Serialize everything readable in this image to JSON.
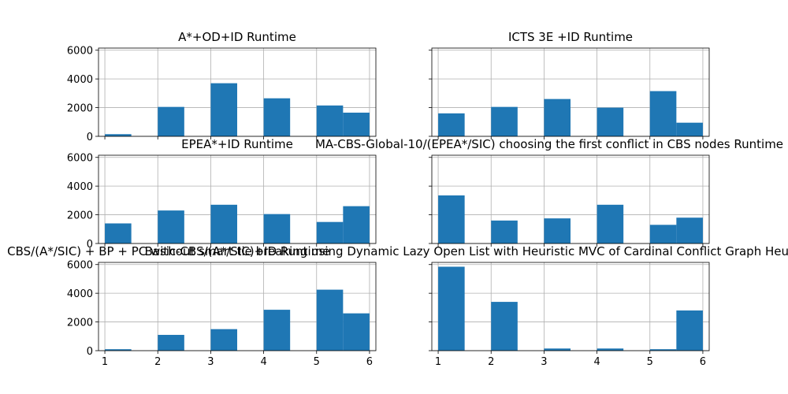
{
  "colors": {
    "bar": "#1f77b4",
    "grid": "#b0b0b0",
    "axis": "#000000",
    "background": "#ffffff"
  },
  "chart_data": [
    {
      "type": "bar",
      "title": "A*+OD+ID Runtime",
      "bins": [
        [
          1.0,
          1.5
        ],
        [
          2.0,
          2.5
        ],
        [
          3.0,
          3.5
        ],
        [
          4.0,
          4.5
        ],
        [
          5.0,
          5.5
        ],
        [
          5.5,
          6.0
        ]
      ],
      "values": [
        150,
        2050,
        3700,
        2650,
        2150,
        1650
      ],
      "xlim": [
        0.88,
        6.12
      ],
      "ylim": [
        0,
        6150
      ],
      "xticks": [],
      "yticks": [
        "0",
        "2000",
        "4000",
        "6000"
      ],
      "grid": true
    },
    {
      "type": "bar",
      "title": "ICTS 3E +ID Runtime",
      "bins": [
        [
          1.0,
          1.5
        ],
        [
          2.0,
          2.5
        ],
        [
          3.0,
          3.5
        ],
        [
          4.0,
          4.5
        ],
        [
          5.0,
          5.5
        ],
        [
          5.5,
          6.0
        ]
      ],
      "values": [
        1600,
        2050,
        2600,
        2000,
        3150,
        950
      ],
      "xlim": [
        0.88,
        6.12
      ],
      "ylim": [
        0,
        6150
      ],
      "xticks": [],
      "yticks": [],
      "grid": true
    },
    {
      "type": "bar",
      "title": "EPEA*+ID Runtime",
      "bins": [
        [
          1.0,
          1.5
        ],
        [
          2.0,
          2.5
        ],
        [
          3.0,
          3.5
        ],
        [
          4.0,
          4.5
        ],
        [
          5.0,
          5.5
        ],
        [
          5.5,
          6.0
        ]
      ],
      "values": [
        1400,
        2300,
        2700,
        2050,
        1500,
        2600
      ],
      "xlim": [
        0.88,
        6.12
      ],
      "ylim": [
        0,
        6150
      ],
      "xticks": [],
      "yticks": [
        "0",
        "2000",
        "4000",
        "6000"
      ],
      "grid": true
    },
    {
      "type": "bar",
      "title": "MA-CBS-Global-10/(EPEA*/SIC) choosing the first conflict in CBS nodes Runtime",
      "bins": [
        [
          1.0,
          1.5
        ],
        [
          2.0,
          2.5
        ],
        [
          3.0,
          3.5
        ],
        [
          4.0,
          4.5
        ],
        [
          5.0,
          5.5
        ],
        [
          5.5,
          6.0
        ]
      ],
      "values": [
        3350,
        1600,
        1750,
        2700,
        1300,
        1800
      ],
      "xlim": [
        0.88,
        6.12
      ],
      "ylim": [
        0,
        6150
      ],
      "xticks": [],
      "yticks": [],
      "grid": true
    },
    {
      "type": "bar",
      "title": "Basic-CBS/(A*/SIC)+ID Runtime",
      "bins": [
        [
          1.0,
          1.5
        ],
        [
          2.0,
          2.5
        ],
        [
          3.0,
          3.5
        ],
        [
          4.0,
          4.5
        ],
        [
          5.0,
          5.5
        ],
        [
          5.5,
          6.0
        ]
      ],
      "values": [
        100,
        1100,
        1500,
        2850,
        4250,
        2600
      ],
      "xlim": [
        0.88,
        6.12
      ],
      "ylim": [
        0,
        6150
      ],
      "xticks": [
        "1",
        "2",
        "3",
        "4",
        "5",
        "6"
      ],
      "yticks": [
        "0",
        "2000",
        "4000",
        "6000"
      ],
      "grid": true
    },
    {
      "type": "bar",
      "title": "CBS/(A*/SIC) + BP + PC without smart tie breaking using Dynamic Lazy Open List with Heuristic MVC of Cardinal Conflict Graph Heuristic Runtime",
      "bins": [
        [
          1.0,
          1.5
        ],
        [
          2.0,
          2.5
        ],
        [
          3.0,
          3.5
        ],
        [
          4.0,
          4.5
        ],
        [
          5.0,
          5.5
        ],
        [
          5.5,
          6.0
        ]
      ],
      "values": [
        5850,
        3400,
        150,
        150,
        100,
        2800
      ],
      "xlim": [
        0.88,
        6.12
      ],
      "ylim": [
        0,
        6150
      ],
      "xticks": [
        "1",
        "2",
        "3",
        "4",
        "5",
        "6"
      ],
      "yticks": [],
      "grid": true
    }
  ]
}
